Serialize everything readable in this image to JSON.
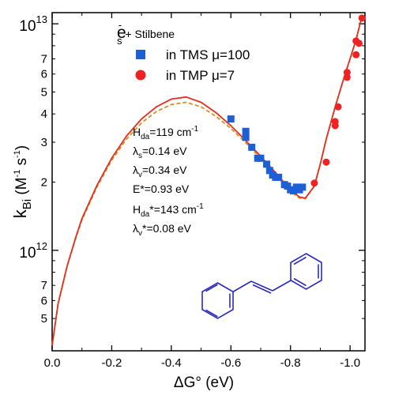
{
  "chart_data": {
    "type": "scatter",
    "xlabel": "ΔG° (eV)",
    "ylabel_main": "k",
    "ylabel_sub": "Bi",
    "ylabel_units_prefix": " (M",
    "ylabel_units_sup1": "-1",
    "ylabel_units_mid": " s",
    "ylabel_units_sup2": "-1",
    "ylabel_units_suffix": ")",
    "x_axis": {
      "direction": "reversed",
      "range": [
        0.0,
        -1.05
      ],
      "ticks": [
        0.0,
        -0.2,
        -0.4,
        -0.6,
        -0.8,
        -1.0
      ],
      "tick_labels": [
        "0.0",
        "-0.2",
        "-0.4",
        "-0.6",
        "-0.8",
        "-1.0"
      ]
    },
    "y_axis": {
      "scale": "log",
      "range": [
        360000000000.0,
        11200000000000.0
      ],
      "major_ticks": [
        1000000000000.0,
        10000000000000.0
      ],
      "major_tick_labels": [
        {
          "base": "10",
          "exp": "12"
        },
        {
          "base": "10",
          "exp": "13"
        }
      ],
      "minor_ticks": [
        500000000000.0,
        600000000000.0,
        700000000000.0,
        2000000000000.0,
        3000000000000.0,
        4000000000000.0,
        5000000000000.0,
        6000000000000.0,
        7000000000000.0
      ],
      "minor_tick_labels": [
        "5",
        "6",
        "7",
        "2",
        "3",
        "4",
        "5",
        "6",
        "7"
      ]
    },
    "legend": {
      "placement": "top-center",
      "title_e": "e",
      "title_sub": "s",
      "title_sup": "-",
      "title_rest": " + Stilbene",
      "entries": [
        {
          "label": "in TMS μ=100",
          "marker": "square",
          "color": "#1f5fd6"
        },
        {
          "label": "in TMP  μ=7",
          "marker": "circle",
          "color": "#ee2222"
        }
      ]
    },
    "series": [
      {
        "name": "in TMS μ=100",
        "marker": "square",
        "color": "#1f5fd6",
        "x": [
          -0.6,
          -0.65,
          -0.65,
          -0.67,
          -0.69,
          -0.7,
          -0.72,
          -0.73,
          -0.74,
          -0.75,
          -0.76,
          -0.78,
          -0.79,
          -0.8,
          -0.81,
          -0.82,
          -0.83,
          -0.84
        ],
        "y": [
          3800000000000.0,
          3350000000000.0,
          3150000000000.0,
          2850000000000.0,
          2550000000000.0,
          2550000000000.0,
          2400000000000.0,
          2250000000000.0,
          2150000000000.0,
          2100000000000.0,
          2100000000000.0,
          1950000000000.0,
          1920000000000.0,
          1850000000000.0,
          1830000000000.0,
          1900000000000.0,
          1850000000000.0,
          1900000000000.0
        ]
      },
      {
        "name": "in TMP  μ=7",
        "marker": "circle",
        "color": "#ee2222",
        "x": [
          -0.88,
          -0.92,
          -0.95,
          -0.95,
          -0.96,
          -0.99,
          -0.99,
          -1.02,
          -1.03,
          -1.02,
          -1.04
        ],
        "y": [
          1980000000000.0,
          2450000000000.0,
          3550000000000.0,
          3700000000000.0,
          4300000000000.0,
          5800000000000.0,
          6100000000000.0,
          7300000000000.0,
          8200000000000.0,
          8400000000000.0,
          10600000000000.0
        ]
      }
    ],
    "fit_curves": [
      {
        "color": "#e62e1e",
        "style": "solid",
        "x": [
          0.0,
          -0.02,
          -0.05,
          -0.08,
          -0.1,
          -0.15,
          -0.2,
          -0.25,
          -0.3,
          -0.35,
          -0.4,
          -0.45,
          -0.5,
          -0.55,
          -0.6,
          -0.65,
          -0.7,
          -0.75,
          -0.8,
          -0.83,
          -0.85,
          -0.88,
          -0.9,
          -0.92,
          -0.95,
          -0.98,
          -1.0,
          -1.02,
          -1.04
        ],
        "y": [
          380000000000.0,
          580000000000.0,
          850000000000.0,
          1150000000000.0,
          1380000000000.0,
          1930000000000.0,
          2550000000000.0,
          3200000000000.0,
          3800000000000.0,
          4300000000000.0,
          4650000000000.0,
          4750000000000.0,
          4500000000000.0,
          4050000000000.0,
          3550000000000.0,
          3050000000000.0,
          2600000000000.0,
          2200000000000.0,
          1850000000000.0,
          1720000000000.0,
          1700000000000.0,
          1920000000000.0,
          2400000000000.0,
          3100000000000.0,
          4300000000000.0,
          5800000000000.0,
          7000000000000.0,
          8500000000000.0,
          10800000000000.0
        ]
      },
      {
        "color": "#d8901e",
        "style": "dashed",
        "x": [
          0.0,
          -0.02,
          -0.05,
          -0.08,
          -0.1,
          -0.15,
          -0.2,
          -0.25,
          -0.3,
          -0.35,
          -0.4,
          -0.45,
          -0.5,
          -0.55,
          -0.6,
          -0.65,
          -0.7,
          -0.75,
          -0.8,
          -0.83,
          -0.85,
          -0.88,
          -0.9,
          -0.92,
          -0.95,
          -0.98,
          -1.0,
          -1.02,
          -1.04
        ],
        "y": [
          380000000000.0,
          580000000000.0,
          850000000000.0,
          1140000000000.0,
          1360000000000.0,
          1900000000000.0,
          2500000000000.0,
          3100000000000.0,
          3650000000000.0,
          4100000000000.0,
          4400000000000.0,
          4500000000000.0,
          4300000000000.0,
          3900000000000.0,
          3450000000000.0,
          2980000000000.0,
          2550000000000.0,
          2150000000000.0,
          1820000000000.0,
          1700000000000.0,
          1690000000000.0,
          1920000000000.0,
          2400000000000.0,
          3100000000000.0,
          4300000000000.0,
          5800000000000.0,
          7000000000000.0,
          8500000000000.0,
          10800000000000.0
        ]
      }
    ],
    "annotations": [
      {
        "pre": "H",
        "sub": "da",
        "mid": "=119 cm",
        "sup": "-1",
        "post": ""
      },
      {
        "pre": "λ",
        "sub": "s",
        "mid": "=0.14 eV",
        "sup": "",
        "post": ""
      },
      {
        "pre": "λ",
        "sub": "v",
        "mid": "=0.34 eV",
        "sup": "",
        "post": ""
      },
      {
        "pre": "E*=0.93 eV",
        "sub": "",
        "mid": "",
        "sup": "",
        "post": ""
      },
      {
        "pre": "H",
        "sub": "da",
        "mid": "*=143 cm",
        "sup": "-1",
        "post": ""
      },
      {
        "pre": "λ",
        "sub": "v",
        "mid": "*=0.08 eV",
        "sup": "",
        "post": ""
      }
    ],
    "inset": {
      "description": "stilbene structure",
      "color": "#2a2abf"
    },
    "grid": false
  }
}
